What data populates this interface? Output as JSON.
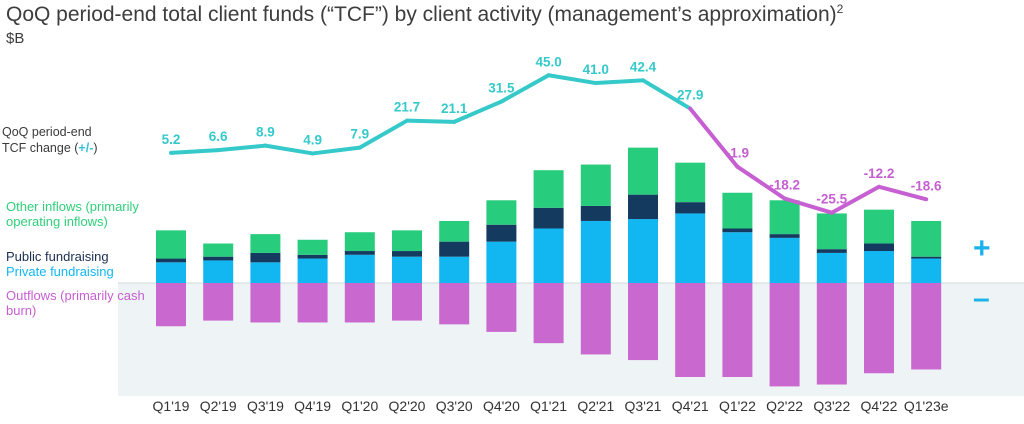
{
  "title": "QoQ period-end total client funds (“TCF”) by client activity (management’s approximation)",
  "title_sup": "2",
  "units": "$B",
  "labels": {
    "qoq_line1": "QoQ period-end",
    "qoq_line2_prefix": "TCF change (",
    "qoq_line2_sign": "+/-",
    "qoq_line2_suffix": ")",
    "other_inflows": "Other inflows (primarily operating inflows)",
    "public_fundraising": "Public fundraising",
    "private_fundraising": "Private fundraising",
    "outflows": "Outflows (primarily cash burn)",
    "plus_sign": "+",
    "minus_sign": "–"
  },
  "colors": {
    "other_inflows": "#27cc7c",
    "public_fundraising": "#143a60",
    "private_fundraising": "#12b7f2",
    "outflows": "#c968cf",
    "line_positive": "#35c9c9",
    "line_negative": "#c65fd1",
    "negative_background": "#eef3f5"
  },
  "chart_data": {
    "type": "bar",
    "stacked": true,
    "categories": [
      "Q1'19",
      "Q2'19",
      "Q3'19",
      "Q4'19",
      "Q1'20",
      "Q2'20",
      "Q3'20",
      "Q4'20",
      "Q1'21",
      "Q2'21",
      "Q3'21",
      "Q4'21",
      "Q1'22",
      "Q2'22",
      "Q3'22",
      "Q4'22",
      "Q1'23e"
    ],
    "series": [
      {
        "name": "Private fundraising",
        "values": [
          11,
          12,
          11,
          13,
          15,
          14,
          14,
          22,
          29,
          33,
          34,
          37,
          27,
          24,
          16,
          17,
          13
        ]
      },
      {
        "name": "Public fundraising",
        "values": [
          2,
          2,
          5,
          2,
          2,
          3,
          8,
          9,
          11,
          8,
          13,
          6,
          2,
          2,
          2,
          4,
          1
        ]
      },
      {
        "name": "Other inflows (primarily operating inflows)",
        "values": [
          15,
          7,
          10,
          8,
          10,
          11,
          11,
          13,
          20,
          22,
          25,
          21,
          19,
          18,
          19,
          18,
          19
        ]
      },
      {
        "name": "Outflows (primarily cash burn)",
        "values": [
          -23,
          -20,
          -21,
          -21,
          -21,
          -20,
          -22,
          -26,
          -32,
          -38,
          -41,
          -50,
          -50,
          -55,
          -54,
          -48,
          -46
        ]
      }
    ],
    "line": {
      "name": "QoQ period-end TCF change (+/-)",
      "values": [
        5.2,
        6.6,
        8.9,
        4.9,
        7.9,
        21.7,
        21.1,
        31.5,
        45.0,
        41.0,
        42.4,
        27.9,
        -1.9,
        -18.2,
        -25.5,
        -12.2,
        -18.6
      ],
      "labels": [
        "5.2",
        "6.6",
        "8.9",
        "4.9",
        "7.9",
        "21.7",
        "21.1",
        "31.5",
        "45.0",
        "41.0",
        "42.4",
        "27.9",
        "-1.9",
        "-18.2",
        "-25.5",
        "-12.2",
        "-18.6"
      ]
    },
    "xlabel": "",
    "ylabel": "",
    "grid": false
  }
}
